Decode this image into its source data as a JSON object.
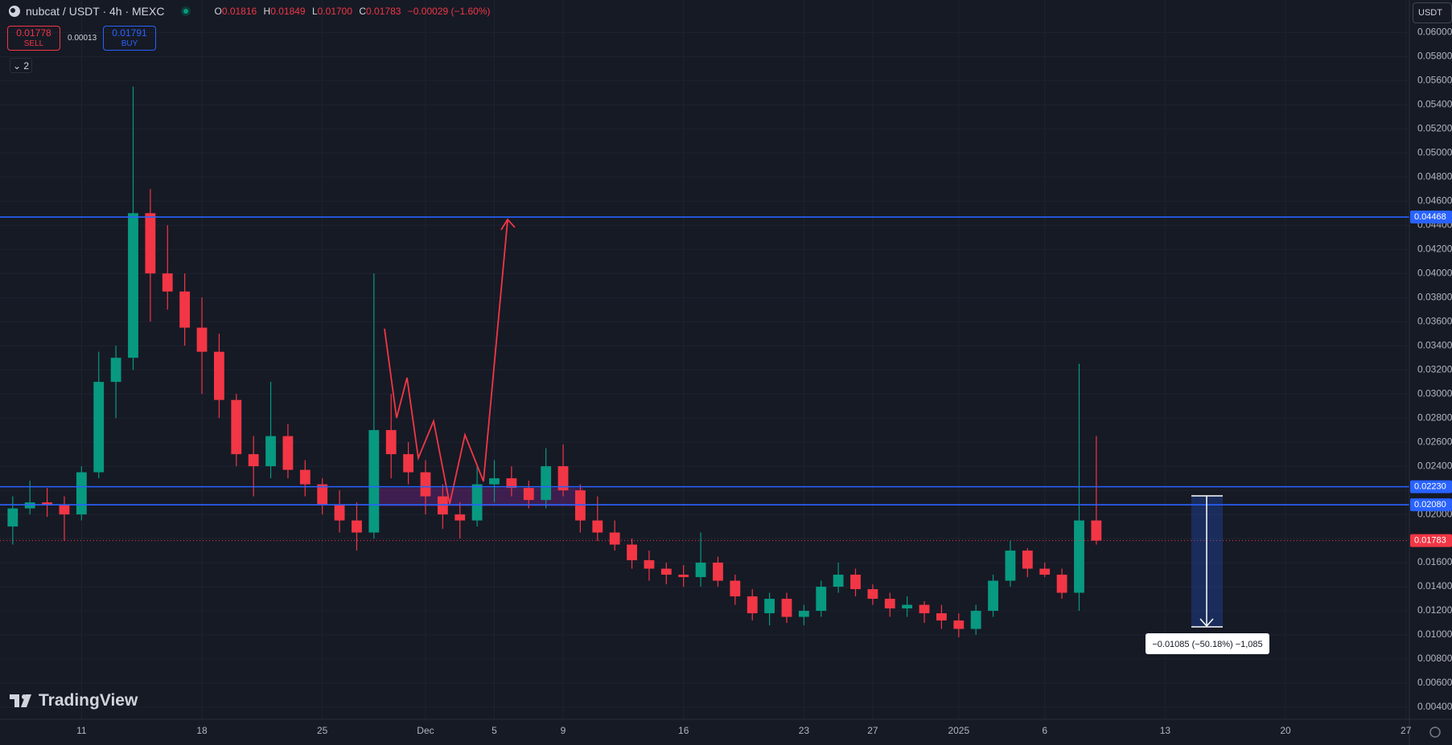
{
  "header": {
    "symbol": "nubcat / USDT · 4h · MEXC",
    "ohlc": [
      {
        "label": "O",
        "value": "0.01816"
      },
      {
        "label": "H",
        "value": "0.01849"
      },
      {
        "label": "L",
        "value": "0.01700"
      },
      {
        "label": "C",
        "value": "0.01783"
      }
    ],
    "change": "−0.00029 (−1.60%)",
    "sell_price": "0.01778",
    "sell_label": "SELL",
    "spread": "0.00013",
    "buy_price": "0.01791",
    "buy_label": "BUY",
    "indicator_count": "2",
    "currency": "USDT",
    "brand": "TradingView"
  },
  "measure": {
    "label": "−0.01085 (−50.18%) −1,085"
  },
  "chart_data": {
    "type": "candlestick",
    "up_color": "#089981",
    "down_color": "#f23645",
    "grid": true,
    "x": [
      7,
      8,
      9,
      10,
      11,
      12,
      13,
      14,
      15,
      16,
      17,
      18,
      19,
      20,
      21,
      22,
      23,
      24,
      25,
      26,
      27,
      28,
      29,
      30,
      31,
      32,
      33,
      34,
      35,
      36,
      37,
      38,
      39,
      40,
      41,
      42,
      43,
      44,
      45,
      46,
      47,
      48,
      49,
      50,
      51,
      52,
      53,
      54,
      55,
      56,
      57,
      58,
      59,
      60,
      61,
      62,
      63,
      64,
      65,
      66,
      67,
      68,
      69,
      70
    ],
    "open": [
      0.019,
      0.0205,
      0.021,
      0.0208,
      0.02,
      0.0235,
      0.031,
      0.033,
      0.045,
      0.04,
      0.0385,
      0.0355,
      0.0335,
      0.0295,
      0.025,
      0.024,
      0.0265,
      0.0237,
      0.0225,
      0.0208,
      0.0195,
      0.0185,
      0.027,
      0.025,
      0.0235,
      0.0215,
      0.02,
      0.0195,
      0.0225,
      0.023,
      0.0222,
      0.0212,
      0.024,
      0.022,
      0.0195,
      0.0185,
      0.0175,
      0.0162,
      0.0155,
      0.015,
      0.0148,
      0.016,
      0.0145,
      0.0132,
      0.0118,
      0.013,
      0.0115,
      0.012,
      0.014,
      0.015,
      0.0138,
      0.013,
      0.0122,
      0.0125,
      0.0118,
      0.0112,
      0.0105,
      0.012,
      0.0145,
      0.017,
      0.0155,
      0.015,
      0.0135,
      0.0195
    ],
    "high": [
      0.0215,
      0.0228,
      0.0222,
      0.0215,
      0.024,
      0.0335,
      0.034,
      0.0555,
      0.047,
      0.044,
      0.04,
      0.038,
      0.035,
      0.03,
      0.0265,
      0.031,
      0.0275,
      0.0245,
      0.023,
      0.022,
      0.021,
      0.04,
      0.03,
      0.026,
      0.0245,
      0.0225,
      0.021,
      0.024,
      0.0245,
      0.024,
      0.0228,
      0.0255,
      0.0258,
      0.0225,
      0.0215,
      0.0195,
      0.018,
      0.017,
      0.016,
      0.0158,
      0.0185,
      0.0165,
      0.015,
      0.0138,
      0.0135,
      0.0135,
      0.0125,
      0.0145,
      0.016,
      0.0155,
      0.0142,
      0.0135,
      0.0132,
      0.0128,
      0.0125,
      0.0118,
      0.0125,
      0.015,
      0.0178,
      0.0172,
      0.016,
      0.0155,
      0.0325,
      0.0265
    ],
    "low": [
      0.0175,
      0.02,
      0.0198,
      0.0178,
      0.0195,
      0.023,
      0.028,
      0.032,
      0.036,
      0.037,
      0.034,
      0.03,
      0.028,
      0.024,
      0.0215,
      0.023,
      0.023,
      0.0215,
      0.02,
      0.0185,
      0.017,
      0.018,
      0.023,
      0.0225,
      0.02,
      0.0188,
      0.018,
      0.019,
      0.021,
      0.0215,
      0.0205,
      0.0205,
      0.0215,
      0.0185,
      0.0178,
      0.017,
      0.0155,
      0.0145,
      0.0142,
      0.014,
      0.014,
      0.014,
      0.0125,
      0.0112,
      0.0108,
      0.011,
      0.0108,
      0.0115,
      0.0135,
      0.0132,
      0.0125,
      0.0115,
      0.0115,
      0.011,
      0.0105,
      0.0098,
      0.01,
      0.0115,
      0.014,
      0.0148,
      0.0148,
      0.013,
      0.012,
      0.0175
    ],
    "close": [
      0.0205,
      0.021,
      0.0208,
      0.02,
      0.0235,
      0.031,
      0.033,
      0.045,
      0.04,
      0.0385,
      0.0355,
      0.0335,
      0.0295,
      0.025,
      0.024,
      0.0265,
      0.0237,
      0.0225,
      0.0208,
      0.0195,
      0.0185,
      0.027,
      0.025,
      0.0235,
      0.0215,
      0.02,
      0.0195,
      0.0225,
      0.023,
      0.0222,
      0.0212,
      0.024,
      0.022,
      0.0195,
      0.0185,
      0.0175,
      0.0162,
      0.0155,
      0.015,
      0.0148,
      0.016,
      0.0145,
      0.0132,
      0.0118,
      0.013,
      0.0115,
      0.012,
      0.014,
      0.015,
      0.0138,
      0.013,
      0.0122,
      0.0125,
      0.0118,
      0.0112,
      0.0105,
      0.012,
      0.0145,
      0.017,
      0.0155,
      0.015,
      0.0135,
      0.0195,
      0.01783
    ],
    "xlim": [
      6.26,
      88.2
    ],
    "xticks": [
      {
        "value": 11,
        "label": "11"
      },
      {
        "value": 18,
        "label": "18"
      },
      {
        "value": 25,
        "label": "25"
      },
      {
        "value": 31,
        "label": "Dec"
      },
      {
        "value": 35,
        "label": "5"
      },
      {
        "value": 39,
        "label": "9"
      },
      {
        "value": 46,
        "label": "16"
      },
      {
        "value": 53,
        "label": "23"
      },
      {
        "value": 57,
        "label": "27"
      },
      {
        "value": 62,
        "label": "2025"
      },
      {
        "value": 67,
        "label": "6"
      },
      {
        "value": 74,
        "label": "13"
      },
      {
        "value": 81,
        "label": "20"
      },
      {
        "value": 88,
        "label": "27"
      }
    ],
    "ylim": [
      0.003,
      0.06269
    ],
    "yticks": [
      {
        "value": 0.004,
        "label": "0.00400"
      },
      {
        "value": 0.006,
        "label": "0.00600"
      },
      {
        "value": 0.008,
        "label": "0.00800"
      },
      {
        "value": 0.01,
        "label": "0.01000"
      },
      {
        "value": 0.012,
        "label": "0.01200"
      },
      {
        "value": 0.014,
        "label": "0.01400"
      },
      {
        "value": 0.016,
        "label": "0.01600"
      },
      {
        "value": 0.018,
        "label": "0.01800"
      },
      {
        "value": 0.02,
        "label": "0.02000"
      },
      {
        "value": 0.022,
        "label": "0.02200"
      },
      {
        "value": 0.024,
        "label": "0.02400"
      },
      {
        "value": 0.026,
        "label": "0.02600"
      },
      {
        "value": 0.028,
        "label": "0.02800"
      },
      {
        "value": 0.03,
        "label": "0.03000"
      },
      {
        "value": 0.032,
        "label": "0.03200"
      },
      {
        "value": 0.034,
        "label": "0.03400"
      },
      {
        "value": 0.036,
        "label": "0.03600"
      },
      {
        "value": 0.038,
        "label": "0.03800"
      },
      {
        "value": 0.04,
        "label": "0.04000"
      },
      {
        "value": 0.042,
        "label": "0.04200"
      },
      {
        "value": 0.044,
        "label": "0.04400"
      },
      {
        "value": 0.046,
        "label": "0.04600"
      },
      {
        "value": 0.048,
        "label": "0.04800"
      },
      {
        "value": 0.05,
        "label": "0.05000"
      },
      {
        "value": 0.052,
        "label": "0.05200"
      },
      {
        "value": 0.054,
        "label": "0.05400"
      },
      {
        "value": 0.056,
        "label": "0.05600"
      },
      {
        "value": 0.058,
        "label": "0.05800"
      },
      {
        "value": 0.06,
        "label": "0.06000"
      }
    ],
    "hlines": [
      {
        "value": 0.04468,
        "label": "0.04468",
        "color": "#2962ff"
      },
      {
        "value": 0.0223,
        "label": "0.02230",
        "color": "#2962ff"
      },
      {
        "value": 0.0208,
        "label": "0.02080",
        "color": "#2962ff"
      }
    ],
    "last_price": {
      "value": 0.01783,
      "label": "0.01783",
      "color": "#f23645"
    }
  }
}
